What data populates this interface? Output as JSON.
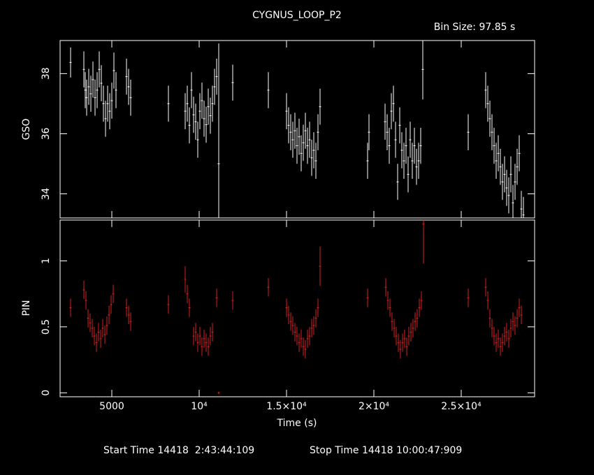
{
  "chart_data": [
    {
      "type": "errorbar",
      "title": "CYGNUS_LOOP_P2",
      "subtitle": "Bin Size: 97.85 s",
      "ylabel": "GSO",
      "color": "#ffffff",
      "xlim": [
        2040,
        29200
      ],
      "ylim": [
        33.2,
        39.1
      ],
      "yticks": [
        34,
        36,
        38
      ],
      "x": [
        2640,
        3400,
        3480,
        3560,
        3680,
        3800,
        3920,
        4040,
        4160,
        4280,
        4400,
        4520,
        4640,
        4760,
        4880,
        5000,
        5120,
        5240,
        5840,
        5960,
        6080,
        8240,
        9200,
        9320,
        9440,
        9560,
        9680,
        9800,
        9920,
        10040,
        10160,
        10280,
        10400,
        10520,
        10640,
        10760,
        10880,
        11000,
        11120,
        11920,
        13960,
        15000,
        15120,
        15240,
        15360,
        15480,
        15600,
        15720,
        15840,
        15960,
        16080,
        16200,
        16320,
        16440,
        16560,
        16680,
        16800,
        16920,
        19640,
        19720,
        20640,
        20760,
        20880,
        21000,
        21120,
        21240,
        21360,
        21480,
        21600,
        21720,
        21840,
        21960,
        22080,
        22200,
        22320,
        22440,
        22560,
        22680,
        22800,
        25400,
        26400,
        26520,
        26640,
        26760,
        26880,
        27000,
        27120,
        27240,
        27360,
        27480,
        27600,
        27720,
        27840,
        27960,
        28080,
        28200,
        28320,
        28440,
        28560
      ],
      "values": [
        38.37,
        38.14,
        37.45,
        37.2,
        37.56,
        37.33,
        37.8,
        37.2,
        37.45,
        38.14,
        37.68,
        37.0,
        36.5,
        37.0,
        36.75,
        37.1,
        38.1,
        37.45,
        37.9,
        37.56,
        37.2,
        37.0,
        36.75,
        37.0,
        36.28,
        37.45,
        36.63,
        36.4,
        35.8,
        36.75,
        37.1,
        36.5,
        36.3,
        36.9,
        36.6,
        37.0,
        37.56,
        37.9,
        35.0,
        37.7,
        37.45,
        36.75,
        36.28,
        36.05,
        35.8,
        36.1,
        35.6,
        35.9,
        35.35,
        35.7,
        36.1,
        35.6,
        35.8,
        35.2,
        35.45,
        35.1,
        36.05,
        36.9,
        35.1,
        36.05,
        36.4,
        36.05,
        35.6,
        36.75,
        37.0,
        35.8,
        34.4,
        36.28,
        35.45,
        35.1,
        35.6,
        34.65,
        35.8,
        35.1,
        35.6,
        34.9,
        35.1,
        35.6,
        38.14,
        36.05,
        37.45,
        37.0,
        36.5,
        36.05,
        35.6,
        35.1,
        35.35,
        34.9,
        34.4,
        34.65,
        34.2,
        33.95,
        34.65,
        33.7,
        34.4,
        34.9,
        35.35,
        33.5,
        33.3
      ],
      "errors": [
        0.5,
        0.6,
        0.6,
        0.6,
        0.6,
        0.6,
        0.6,
        0.6,
        0.6,
        0.6,
        0.6,
        0.6,
        0.6,
        0.6,
        0.6,
        0.6,
        0.6,
        0.6,
        0.6,
        0.6,
        0.6,
        0.6,
        0.6,
        0.6,
        0.6,
        0.6,
        0.6,
        0.6,
        0.6,
        0.6,
        0.6,
        0.6,
        0.6,
        0.6,
        0.6,
        0.6,
        0.6,
        0.6,
        4.0,
        0.6,
        0.6,
        0.6,
        0.6,
        0.6,
        0.6,
        0.6,
        0.6,
        0.6,
        0.6,
        0.6,
        0.6,
        0.6,
        0.6,
        0.6,
        0.6,
        0.6,
        0.6,
        0.6,
        0.6,
        0.6,
        0.6,
        0.6,
        0.6,
        0.6,
        0.6,
        0.6,
        0.6,
        0.6,
        0.6,
        0.6,
        0.6,
        0.6,
        0.6,
        0.6,
        0.6,
        0.6,
        0.6,
        0.6,
        1.0,
        0.6,
        0.6,
        0.6,
        0.6,
        0.6,
        0.6,
        0.6,
        0.6,
        0.6,
        0.6,
        0.6,
        0.6,
        0.6,
        0.6,
        0.6,
        0.6,
        0.6,
        0.6,
        0.6,
        0.6
      ]
    },
    {
      "type": "errorbar",
      "ylabel": "PIN",
      "xlabel": "Time (s)",
      "color": "#d42020",
      "start_time": "Start Time 14418  2:43:44:109",
      "stop_time": "Stop Time 14418 10:00:47:909",
      "xlim": [
        2040,
        29200
      ],
      "ylim": [
        -0.03,
        1.31
      ],
      "yticks": [
        0,
        0.5,
        1
      ],
      "xticks": [
        5000,
        {
          "value": 10000,
          "label": "10⁴"
        },
        {
          "value": 15000,
          "label": "1.5×10⁴"
        },
        {
          "value": 20000,
          "label": "2×10⁴"
        },
        {
          "value": 25000,
          "label": "2.5×10⁴"
        }
      ],
      "x": [
        2640,
        3400,
        3520,
        3640,
        3760,
        3880,
        4000,
        4120,
        4240,
        4360,
        4480,
        4600,
        4720,
        4840,
        4960,
        5080,
        5840,
        5960,
        6080,
        8240,
        9200,
        9320,
        9440,
        9680,
        9800,
        9920,
        10040,
        10160,
        10280,
        10400,
        10520,
        10640,
        10760,
        11000,
        11120,
        11920,
        13960,
        15000,
        15120,
        15240,
        15360,
        15480,
        15600,
        15720,
        15840,
        15960,
        16080,
        16200,
        16320,
        16440,
        16560,
        16680,
        16800,
        16920,
        19640,
        20680,
        20800,
        20920,
        21040,
        21160,
        21280,
        21400,
        21520,
        21640,
        21760,
        21880,
        22000,
        22120,
        22240,
        22360,
        22480,
        22600,
        22720,
        22840,
        25400,
        26400,
        26520,
        26640,
        26760,
        26880,
        27000,
        27120,
        27240,
        27360,
        27480,
        27600,
        27720,
        27840,
        27960,
        28080,
        28200,
        28320,
        28440
      ],
      "values": [
        0.645,
        0.78,
        0.7,
        0.565,
        0.53,
        0.49,
        0.43,
        0.38,
        0.46,
        0.41,
        0.49,
        0.44,
        0.51,
        0.59,
        0.67,
        0.75,
        0.645,
        0.59,
        0.54,
        0.67,
        0.86,
        0.75,
        0.645,
        0.43,
        0.46,
        0.38,
        0.43,
        0.35,
        0.41,
        0.38,
        0.35,
        0.43,
        0.46,
        0.72,
        0.0,
        0.7,
        0.8,
        0.645,
        0.59,
        0.54,
        0.51,
        0.46,
        0.43,
        0.38,
        0.41,
        0.35,
        0.33,
        0.41,
        0.43,
        0.49,
        0.51,
        0.565,
        0.645,
        0.96,
        0.72,
        0.8,
        0.7,
        0.645,
        0.54,
        0.49,
        0.43,
        0.38,
        0.33,
        0.38,
        0.41,
        0.35,
        0.43,
        0.46,
        0.49,
        0.54,
        0.565,
        0.645,
        0.7,
        1.28,
        0.72,
        0.8,
        0.7,
        0.565,
        0.49,
        0.43,
        0.38,
        0.41,
        0.35,
        0.38,
        0.43,
        0.46,
        0.41,
        0.49,
        0.54,
        0.51,
        0.565,
        0.645,
        0.59
      ],
      "errors": [
        0.07,
        0.07,
        0.07,
        0.07,
        0.07,
        0.07,
        0.07,
        0.07,
        0.07,
        0.07,
        0.07,
        0.07,
        0.07,
        0.07,
        0.07,
        0.07,
        0.07,
        0.07,
        0.07,
        0.07,
        0.1,
        0.07,
        0.07,
        0.07,
        0.07,
        0.07,
        0.07,
        0.07,
        0.07,
        0.07,
        0.07,
        0.07,
        0.07,
        0.07,
        0.01,
        0.07,
        0.07,
        0.07,
        0.07,
        0.07,
        0.07,
        0.07,
        0.07,
        0.07,
        0.07,
        0.07,
        0.07,
        0.07,
        0.07,
        0.07,
        0.07,
        0.07,
        0.07,
        0.15,
        0.07,
        0.07,
        0.07,
        0.07,
        0.07,
        0.07,
        0.07,
        0.07,
        0.07,
        0.07,
        0.07,
        0.07,
        0.07,
        0.07,
        0.07,
        0.07,
        0.07,
        0.07,
        0.07,
        0.3,
        0.07,
        0.07,
        0.07,
        0.07,
        0.07,
        0.07,
        0.07,
        0.07,
        0.07,
        0.07,
        0.07,
        0.07,
        0.07,
        0.07,
        0.07,
        0.07,
        0.07,
        0.07,
        0.07
      ]
    }
  ]
}
